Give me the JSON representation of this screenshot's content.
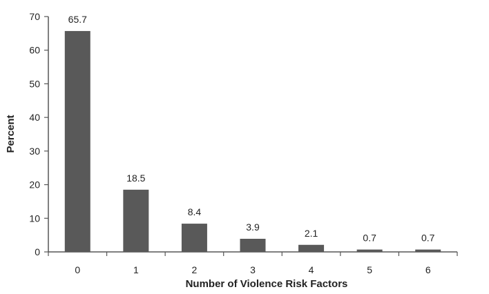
{
  "chart_data": {
    "type": "bar",
    "title": "",
    "xlabel": "Number of Violence Risk Factors",
    "ylabel": "Percent",
    "categories": [
      "0",
      "1",
      "2",
      "3",
      "4",
      "5",
      "6"
    ],
    "values": [
      65.7,
      18.5,
      8.4,
      3.9,
      2.1,
      0.7,
      0.7
    ],
    "data_labels": [
      "65.7",
      "18.5",
      "8.4",
      "3.9",
      "2.1",
      "0.7",
      "0.7"
    ],
    "ylim": [
      0,
      70
    ],
    "yticks": [
      "0",
      "10",
      "20",
      "30",
      "40",
      "50",
      "60",
      "70"
    ],
    "grid": false,
    "legend": "none",
    "bar_color": "#595959"
  }
}
